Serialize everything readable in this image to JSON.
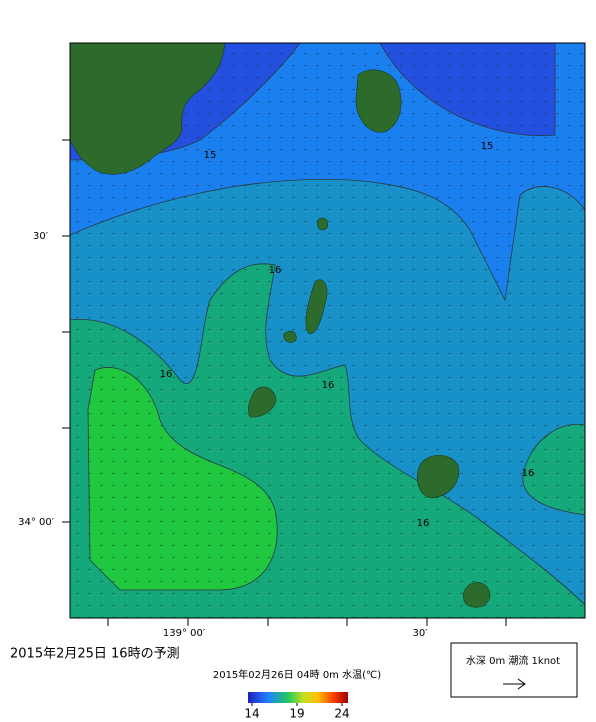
{
  "title": "2015年2月25日 16時の予測",
  "subtitle": "2015年02月26日 04時 0m 水温(℃)",
  "axes": {
    "y_labels": [
      "30′",
      "34° 00′"
    ],
    "x_labels": [
      "139° 00′",
      "30′"
    ]
  },
  "contour_labels": [
    15,
    15,
    16,
    16,
    16,
    16,
    16
  ],
  "colorbar": {
    "range": [
      14,
      24
    ],
    "ticks": [
      14,
      19,
      24
    ]
  },
  "legend": {
    "text": "水深 0m 潮流 1knot"
  }
}
